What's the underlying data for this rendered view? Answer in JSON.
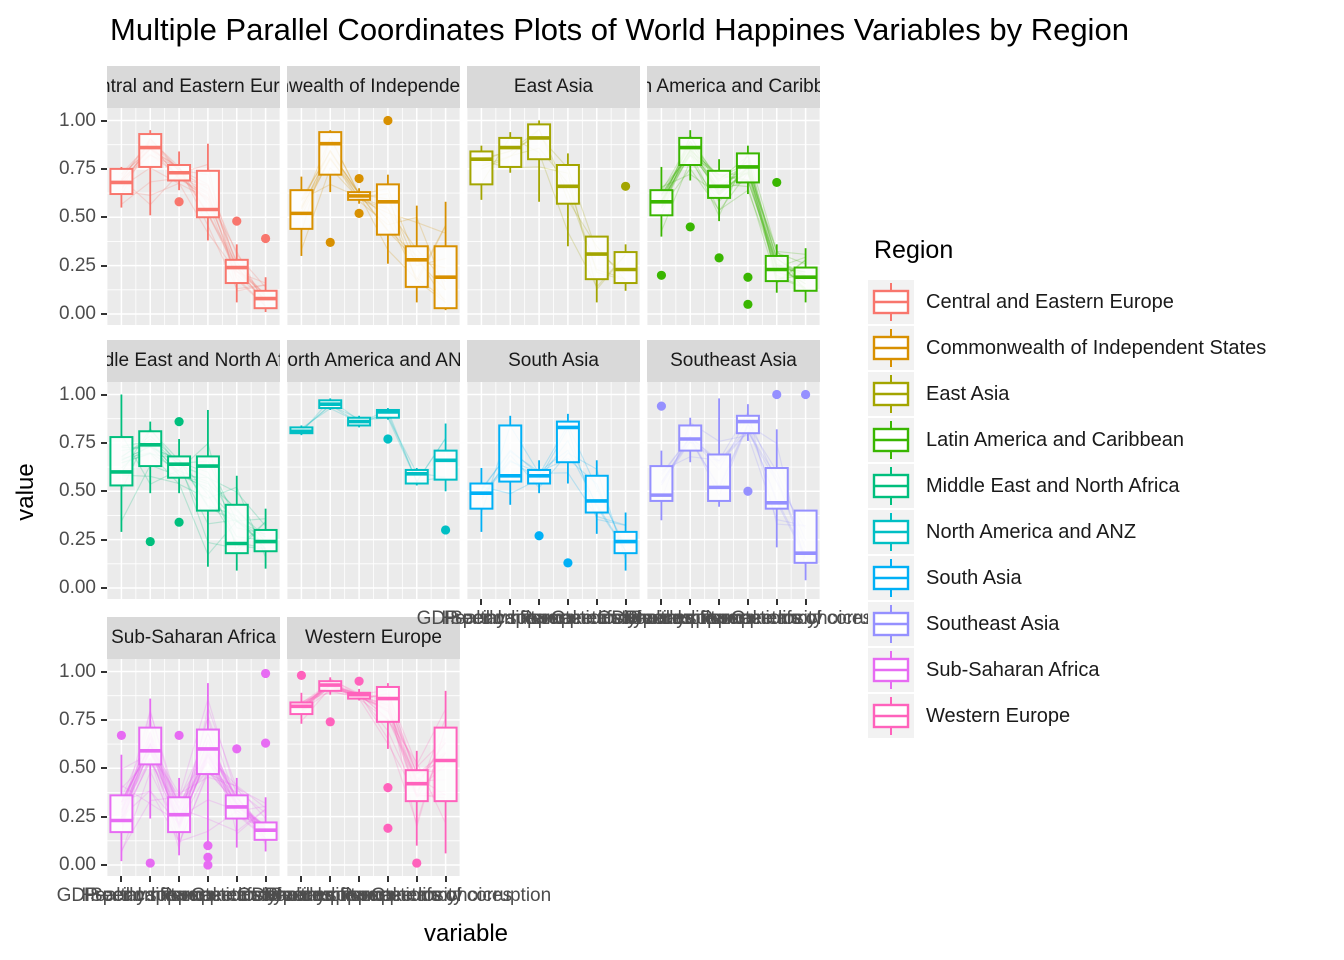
{
  "title": "Multiple Parallel Coordinates Plots of World Happines Variables by Region",
  "axis": {
    "x_title": "variable",
    "y_title": "value",
    "y_tick_labels": [
      "1.00",
      "0.75",
      "0.50",
      "0.25",
      "0.00"
    ]
  },
  "variables": [
    "GDP per capita",
    "Social support",
    "Healthy life expectancy",
    "Freedom to make life choices",
    "Generosity",
    "Perceptions of corruption"
  ],
  "legend": {
    "title": "Region"
  },
  "chart_data": {
    "type": "boxplot-parallel-coordinates",
    "facet_layout": "wrap-4-cols",
    "y_range": [
      0,
      1
    ],
    "y_ticks": [
      0,
      0.25,
      0.5,
      0.75,
      1.0
    ],
    "facets": [
      {
        "region": "Central and Eastern Europe",
        "color": "#F8766D",
        "row": 0,
        "col": 0,
        "lines": 16,
        "boxes": [
          {
            "q1": 0.62,
            "med": 0.68,
            "q3": 0.75,
            "lo": 0.55,
            "hi": 0.76,
            "out": []
          },
          {
            "q1": 0.76,
            "med": 0.86,
            "q3": 0.93,
            "lo": 0.51,
            "hi": 0.95,
            "out": []
          },
          {
            "q1": 0.69,
            "med": 0.73,
            "q3": 0.77,
            "lo": 0.64,
            "hi": 0.84,
            "out": [
              0.58
            ]
          },
          {
            "q1": 0.5,
            "med": 0.54,
            "q3": 0.74,
            "lo": 0.38,
            "hi": 0.88,
            "out": []
          },
          {
            "q1": 0.16,
            "med": 0.24,
            "q3": 0.28,
            "lo": 0.06,
            "hi": 0.36,
            "out": [
              0.48
            ]
          },
          {
            "q1": 0.03,
            "med": 0.08,
            "q3": 0.12,
            "lo": 0.01,
            "hi": 0.19,
            "out": [
              0.39
            ]
          }
        ]
      },
      {
        "region": "Commonwealth of Independent States",
        "color": "#D89000",
        "row": 0,
        "col": 1,
        "lines": 11,
        "boxes": [
          {
            "q1": 0.44,
            "med": 0.52,
            "q3": 0.64,
            "lo": 0.3,
            "hi": 0.71,
            "out": []
          },
          {
            "q1": 0.72,
            "med": 0.88,
            "q3": 0.94,
            "lo": 0.63,
            "hi": 0.95,
            "out": [
              0.37
            ]
          },
          {
            "q1": 0.59,
            "med": 0.61,
            "q3": 0.63,
            "lo": 0.57,
            "hi": 0.65,
            "out": [
              0.7,
              0.52
            ]
          },
          {
            "q1": 0.41,
            "med": 0.58,
            "q3": 0.67,
            "lo": 0.26,
            "hi": 0.72,
            "out": [
              1.0
            ]
          },
          {
            "q1": 0.14,
            "med": 0.28,
            "q3": 0.35,
            "lo": 0.06,
            "hi": 0.56,
            "out": []
          },
          {
            "q1": 0.03,
            "med": 0.19,
            "q3": 0.35,
            "lo": 0.02,
            "hi": 0.58,
            "out": []
          }
        ]
      },
      {
        "region": "East Asia",
        "color": "#A3A500",
        "row": 0,
        "col": 2,
        "lines": 6,
        "boxes": [
          {
            "q1": 0.67,
            "med": 0.8,
            "q3": 0.84,
            "lo": 0.59,
            "hi": 0.87,
            "out": []
          },
          {
            "q1": 0.76,
            "med": 0.86,
            "q3": 0.91,
            "lo": 0.73,
            "hi": 0.94,
            "out": []
          },
          {
            "q1": 0.8,
            "med": 0.91,
            "q3": 0.98,
            "lo": 0.58,
            "hi": 1.0,
            "out": []
          },
          {
            "q1": 0.57,
            "med": 0.66,
            "q3": 0.77,
            "lo": 0.35,
            "hi": 0.83,
            "out": []
          },
          {
            "q1": 0.18,
            "med": 0.31,
            "q3": 0.4,
            "lo": 0.06,
            "hi": 0.4,
            "out": []
          },
          {
            "q1": 0.16,
            "med": 0.23,
            "q3": 0.32,
            "lo": 0.12,
            "hi": 0.36,
            "out": [
              0.66
            ]
          }
        ]
      },
      {
        "region": "Latin America and Caribbean",
        "color": "#39B600",
        "row": 0,
        "col": 3,
        "lines": 20,
        "boxes": [
          {
            "q1": 0.51,
            "med": 0.58,
            "q3": 0.64,
            "lo": 0.4,
            "hi": 0.76,
            "out": [
              0.2
            ]
          },
          {
            "q1": 0.77,
            "med": 0.86,
            "q3": 0.91,
            "lo": 0.69,
            "hi": 0.95,
            "out": [
              0.45
            ]
          },
          {
            "q1": 0.6,
            "med": 0.66,
            "q3": 0.74,
            "lo": 0.48,
            "hi": 0.8,
            "out": [
              0.29
            ]
          },
          {
            "q1": 0.68,
            "med": 0.76,
            "q3": 0.83,
            "lo": 0.62,
            "hi": 0.87,
            "out": [
              0.19,
              0.05
            ]
          },
          {
            "q1": 0.17,
            "med": 0.23,
            "q3": 0.3,
            "lo": 0.11,
            "hi": 0.36,
            "out": [
              0.68
            ]
          },
          {
            "q1": 0.12,
            "med": 0.19,
            "q3": 0.24,
            "lo": 0.06,
            "hi": 0.34,
            "out": []
          }
        ]
      },
      {
        "region": "Middle East and North Africa",
        "color": "#00BF7D",
        "row": 1,
        "col": 0,
        "lines": 16,
        "boxes": [
          {
            "q1": 0.53,
            "med": 0.6,
            "q3": 0.78,
            "lo": 0.29,
            "hi": 1.0,
            "out": []
          },
          {
            "q1": 0.63,
            "med": 0.74,
            "q3": 0.81,
            "lo": 0.49,
            "hi": 0.86,
            "out": [
              0.24
            ]
          },
          {
            "q1": 0.57,
            "med": 0.64,
            "q3": 0.68,
            "lo": 0.49,
            "hi": 0.77,
            "out": [
              0.86,
              0.34
            ]
          },
          {
            "q1": 0.4,
            "med": 0.63,
            "q3": 0.68,
            "lo": 0.11,
            "hi": 0.92,
            "out": []
          },
          {
            "q1": 0.18,
            "med": 0.23,
            "q3": 0.43,
            "lo": 0.09,
            "hi": 0.58,
            "out": []
          },
          {
            "q1": 0.19,
            "med": 0.24,
            "q3": 0.3,
            "lo": 0.1,
            "hi": 0.41,
            "out": []
          }
        ]
      },
      {
        "region": "North America and ANZ",
        "color": "#00BFC4",
        "row": 1,
        "col": 1,
        "lines": 4,
        "boxes": [
          {
            "q1": 0.8,
            "med": 0.81,
            "q3": 0.83,
            "lo": 0.79,
            "hi": 0.84,
            "out": []
          },
          {
            "q1": 0.93,
            "med": 0.95,
            "q3": 0.97,
            "lo": 0.92,
            "hi": 0.98,
            "out": []
          },
          {
            "q1": 0.84,
            "med": 0.86,
            "q3": 0.88,
            "lo": 0.83,
            "hi": 0.89,
            "out": []
          },
          {
            "q1": 0.88,
            "med": 0.91,
            "q3": 0.92,
            "lo": 0.87,
            "hi": 0.93,
            "out": [
              0.77
            ]
          },
          {
            "q1": 0.54,
            "med": 0.59,
            "q3": 0.61,
            "lo": 0.53,
            "hi": 0.62,
            "out": []
          },
          {
            "q1": 0.56,
            "med": 0.66,
            "q3": 0.71,
            "lo": 0.5,
            "hi": 0.85,
            "out": [
              0.3
            ]
          }
        ]
      },
      {
        "region": "South Asia",
        "color": "#00B0F6",
        "row": 1,
        "col": 2,
        "lines": 7,
        "boxes": [
          {
            "q1": 0.41,
            "med": 0.49,
            "q3": 0.54,
            "lo": 0.29,
            "hi": 0.62,
            "out": []
          },
          {
            "q1": 0.55,
            "med": 0.58,
            "q3": 0.84,
            "lo": 0.43,
            "hi": 0.89,
            "out": []
          },
          {
            "q1": 0.54,
            "med": 0.58,
            "q3": 0.61,
            "lo": 0.49,
            "hi": 0.66,
            "out": [
              0.27
            ]
          },
          {
            "q1": 0.65,
            "med": 0.83,
            "q3": 0.86,
            "lo": 0.54,
            "hi": 0.9,
            "out": [
              0.13
            ]
          },
          {
            "q1": 0.39,
            "med": 0.45,
            "q3": 0.58,
            "lo": 0.28,
            "hi": 0.66,
            "out": []
          },
          {
            "q1": 0.18,
            "med": 0.24,
            "q3": 0.29,
            "lo": 0.09,
            "hi": 0.39,
            "out": []
          }
        ]
      },
      {
        "region": "Southeast Asia",
        "color": "#9590FF",
        "row": 1,
        "col": 3,
        "lines": 9,
        "boxes": [
          {
            "q1": 0.45,
            "med": 0.48,
            "q3": 0.63,
            "lo": 0.35,
            "hi": 0.71,
            "out": [
              0.94
            ]
          },
          {
            "q1": 0.71,
            "med": 0.77,
            "q3": 0.84,
            "lo": 0.65,
            "hi": 0.88,
            "out": []
          },
          {
            "q1": 0.45,
            "med": 0.52,
            "q3": 0.69,
            "lo": 0.42,
            "hi": 0.98,
            "out": []
          },
          {
            "q1": 0.8,
            "med": 0.86,
            "q3": 0.89,
            "lo": 0.76,
            "hi": 0.95,
            "out": [
              0.5
            ]
          },
          {
            "q1": 0.41,
            "med": 0.44,
            "q3": 0.62,
            "lo": 0.21,
            "hi": 0.82,
            "out": [
              1.0
            ]
          },
          {
            "q1": 0.13,
            "med": 0.18,
            "q3": 0.4,
            "lo": 0.04,
            "hi": 0.4,
            "out": [
              1.0
            ]
          }
        ]
      },
      {
        "region": "Sub-Saharan Africa",
        "color": "#E76BF3",
        "row": 2,
        "col": 0,
        "lines": 34,
        "boxes": [
          {
            "q1": 0.17,
            "med": 0.23,
            "q3": 0.36,
            "lo": 0.02,
            "hi": 0.57,
            "out": [
              0.67
            ]
          },
          {
            "q1": 0.52,
            "med": 0.59,
            "q3": 0.71,
            "lo": 0.24,
            "hi": 0.86,
            "out": [
              0.01
            ]
          },
          {
            "q1": 0.17,
            "med": 0.26,
            "q3": 0.35,
            "lo": 0.05,
            "hi": 0.45,
            "out": [
              0.67
            ]
          },
          {
            "q1": 0.47,
            "med": 0.6,
            "q3": 0.7,
            "lo": 0.11,
            "hi": 0.94,
            "out": [
              0.1,
              0.04,
              0.0
            ]
          },
          {
            "q1": 0.24,
            "med": 0.3,
            "q3": 0.36,
            "lo": 0.09,
            "hi": 0.45,
            "out": [
              0.6
            ]
          },
          {
            "q1": 0.13,
            "med": 0.18,
            "q3": 0.22,
            "lo": 0.07,
            "hi": 0.35,
            "out": [
              0.99,
              0.63
            ]
          }
        ]
      },
      {
        "region": "Western Europe",
        "color": "#FF62BC",
        "row": 2,
        "col": 1,
        "lines": 20,
        "boxes": [
          {
            "q1": 0.78,
            "med": 0.82,
            "q3": 0.84,
            "lo": 0.73,
            "hi": 0.89,
            "out": [
              0.98
            ]
          },
          {
            "q1": 0.9,
            "med": 0.93,
            "q3": 0.95,
            "lo": 0.88,
            "hi": 0.97,
            "out": [
              0.74
            ]
          },
          {
            "q1": 0.86,
            "med": 0.88,
            "q3": 0.89,
            "lo": 0.85,
            "hi": 0.91,
            "out": [
              0.95
            ]
          },
          {
            "q1": 0.74,
            "med": 0.86,
            "q3": 0.92,
            "lo": 0.6,
            "hi": 0.94,
            "out": [
              0.4,
              0.19
            ]
          },
          {
            "q1": 0.33,
            "med": 0.42,
            "q3": 0.49,
            "lo": 0.1,
            "hi": 0.59,
            "out": [
              0.01
            ]
          },
          {
            "q1": 0.33,
            "med": 0.54,
            "q3": 0.71,
            "lo": 0.06,
            "hi": 0.9,
            "out": []
          }
        ]
      }
    ]
  }
}
